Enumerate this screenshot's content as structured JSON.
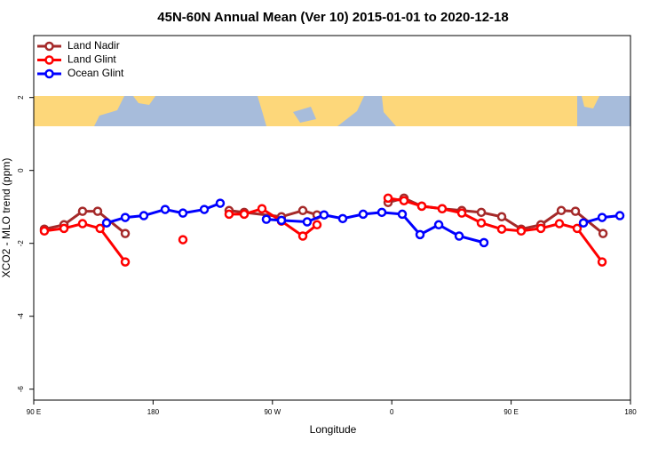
{
  "chart_data": {
    "type": "line",
    "title": "45N-60N Annual Mean (Ver 10)   2015-01-01 to 2020-12-18",
    "x_label": "Longitude",
    "y_label": "XCO2 - MLO trend (ppm)",
    "xlim": [
      90,
      540
    ],
    "ylim": [
      -6.3,
      3.7
    ],
    "xticks": [
      {
        "value": 90,
        "label": "90 E"
      },
      180,
      {
        "value": 270,
        "label": "90 W"
      },
      {
        "value": 360,
        "label": "0"
      },
      {
        "value": 450,
        "label": "90 E"
      },
      {
        "value": 540,
        "label": "180"
      }
    ],
    "yticks": [
      -6,
      -4,
      -2,
      0,
      2
    ],
    "legend": "top-left",
    "series": [
      {
        "name": "Land Nadir",
        "color": "#a52a2a",
        "x": [
          98,
          112.8,
          126.8,
          138.2,
          159,
          null,
          237.3,
          248.7,
          276.8,
          292.9,
          303.6,
          null,
          357.2,
          369.2,
          382.6,
          398,
          412.8,
          427.5,
          442.9,
          457.6,
          472.4,
          487.8,
          498.5,
          519.3
        ],
        "values": [
          -1.61,
          -1.49,
          -1.12,
          -1.12,
          -1.73,
          null,
          -1.1,
          -1.15,
          -1.27,
          -1.1,
          -1.22,
          null,
          -0.88,
          -0.76,
          -0.98,
          -1.05,
          -1.1,
          -1.15,
          -1.27,
          -1.61,
          -1.49,
          -1.1,
          -1.12,
          -1.73
        ]
      },
      {
        "name": "Land Glint",
        "color": "#ff0000",
        "x": [
          98,
          112.8,
          126.8,
          140,
          159,
          null,
          202.5,
          null,
          237.3,
          248.7,
          262.1,
          276.8,
          292.9,
          303.6,
          null,
          357.2,
          369.2,
          382.6,
          398,
          412.8,
          427.5,
          442.9,
          457.6,
          472.4,
          486.4,
          499.8,
          518.6
        ],
        "values": [
          -1.66,
          -1.59,
          -1.46,
          -1.59,
          -2.51,
          null,
          -1.9,
          null,
          -1.2,
          -1.2,
          -1.05,
          -1.39,
          -1.8,
          -1.49,
          null,
          -0.76,
          -0.83,
          -0.98,
          -1.05,
          -1.17,
          -1.44,
          -1.61,
          -1.66,
          -1.59,
          -1.46,
          -1.59,
          -2.51
        ]
      },
      {
        "name": "Ocean Glint",
        "color": "#0000ff",
        "x": [
          144.9,
          159,
          173,
          189.1,
          202.5,
          218.6,
          230.6,
          null,
          265.4,
          276.8,
          296.2,
          308.9,
          323,
          338.4,
          352.5,
          367.9,
          381.3,
          395.4,
          410.8,
          429.5,
          null,
          504.5,
          518.6,
          532
        ],
        "values": [
          -1.44,
          -1.29,
          -1.24,
          -1.07,
          -1.17,
          -1.07,
          -0.9,
          null,
          -1.34,
          -1.37,
          -1.41,
          -1.22,
          -1.32,
          -1.2,
          -1.15,
          -1.2,
          -1.76,
          -1.49,
          -1.8,
          -1.98,
          null,
          -1.44,
          -1.29,
          -1.24
        ]
      }
    ]
  }
}
